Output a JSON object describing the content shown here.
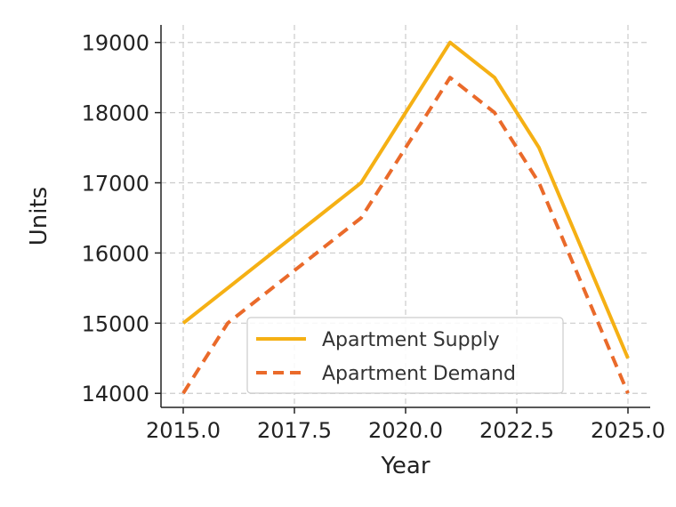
{
  "chart_data": {
    "type": "line",
    "title": "",
    "xlabel": "Year",
    "ylabel": "Units",
    "xlim": [
      2014.5,
      2025.5
    ],
    "ylim": [
      13800,
      19250
    ],
    "x_ticks": [
      "2015.0",
      "2017.5",
      "2020.0",
      "2022.5",
      "2025.0"
    ],
    "y_ticks": [
      "14000",
      "15000",
      "16000",
      "17000",
      "18000",
      "19000"
    ],
    "grid": true,
    "legend_position": "lower center",
    "series": [
      {
        "name": "Apartment Supply",
        "color": "#F5B014",
        "style": "solid",
        "x": [
          2015,
          2016,
          2017,
          2018,
          2019,
          2020,
          2021,
          2022,
          2023,
          2024,
          2025
        ],
        "y": [
          15000,
          15500,
          16000,
          16500,
          17000,
          18000,
          19000,
          18500,
          17500,
          16000,
          14500
        ]
      },
      {
        "name": "Apartment Demand",
        "color": "#EA6A2A",
        "style": "dashed",
        "x": [
          2015,
          2016,
          2017,
          2018,
          2019,
          2020,
          2021,
          2022,
          2023,
          2024,
          2025
        ],
        "y": [
          14000,
          15000,
          15500,
          16000,
          16500,
          17500,
          18500,
          18000,
          17000,
          15500,
          14000
        ]
      }
    ]
  }
}
